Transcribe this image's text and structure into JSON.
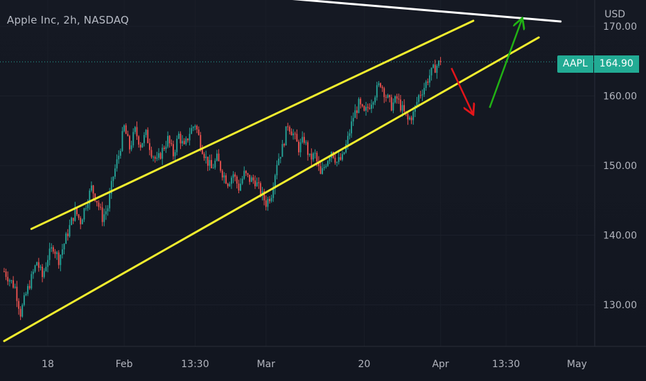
{
  "header": {
    "title": "Apple Inc, 2h, NASDAQ",
    "currency": "USD"
  },
  "price_tag": {
    "symbol": "AAPL",
    "value": "164.90"
  },
  "colors": {
    "background": "#131722",
    "grid": "#2a2e39",
    "up": "#26a69a",
    "down": "#ef5350",
    "channel": "#f2ee2e",
    "resistance": "#ffffff",
    "arrow_down": "#e3151a",
    "arrow_up": "#21b214",
    "price_label": "#22ab94",
    "text": "#b2b5be"
  },
  "chart_data": {
    "type": "candlestick",
    "title": "Apple Inc, 2h, NASDAQ",
    "y_axis": {
      "ticks": [
        "130.00",
        "140.00",
        "150.00",
        "160.00",
        "170.00"
      ],
      "tick_values": [
        130,
        140,
        150,
        160,
        170
      ],
      "range": [
        125.5,
        172
      ],
      "unit": "USD"
    },
    "x_axis": {
      "ticks": [
        "18",
        "Feb",
        "13:30",
        "Mar",
        "20",
        "Apr",
        "13:30",
        "May"
      ],
      "tick_index": [
        8,
        22,
        35,
        48,
        66,
        80,
        92,
        105
      ]
    },
    "last_price": 164.9,
    "grid": true,
    "series_path": [
      [
        0,
        134.8
      ],
      [
        2,
        132.5
      ],
      [
        3,
        128.8
      ],
      [
        4,
        131.5
      ],
      [
        5,
        133.8
      ],
      [
        6,
        136.2
      ],
      [
        7,
        134.0
      ],
      [
        8,
        136.8
      ],
      [
        9,
        138.4
      ],
      [
        10,
        136.5
      ],
      [
        11,
        138.8
      ],
      [
        12,
        141.2
      ],
      [
        13,
        143.5
      ],
      [
        14,
        142.0
      ],
      [
        15,
        144.5
      ],
      [
        16,
        146.8
      ],
      [
        17,
        145.0
      ],
      [
        18,
        142.5
      ],
      [
        19,
        144.0
      ],
      [
        20,
        148.5
      ],
      [
        21,
        151.5
      ],
      [
        22,
        155.5
      ],
      [
        23,
        152.5
      ],
      [
        24,
        155.0
      ],
      [
        25,
        153.0
      ],
      [
        26,
        154.5
      ],
      [
        27,
        152.0
      ],
      [
        28,
        150.5
      ],
      [
        29,
        152.2
      ],
      [
        30,
        153.8
      ],
      [
        31,
        151.6
      ],
      [
        32,
        154.4
      ],
      [
        33,
        152.5
      ],
      [
        34,
        154.8
      ],
      [
        35,
        156.0
      ],
      [
        36,
        153.2
      ],
      [
        37,
        151.0
      ],
      [
        38,
        149.5
      ],
      [
        39,
        151.0
      ],
      [
        40,
        149.0
      ],
      [
        41,
        147.6
      ],
      [
        42,
        148.8
      ],
      [
        43,
        146.8
      ],
      [
        44,
        148.8
      ],
      [
        45,
        148.0
      ],
      [
        46,
        147.8
      ],
      [
        47,
        146.2
      ],
      [
        48,
        144.6
      ],
      [
        49,
        146.0
      ],
      [
        50,
        150.5
      ],
      [
        51,
        152.5
      ],
      [
        52,
        156.0
      ],
      [
        53,
        154.5
      ],
      [
        54,
        152.5
      ],
      [
        55,
        153.8
      ],
      [
        56,
        151.0
      ],
      [
        57,
        151.5
      ],
      [
        58,
        148.5
      ],
      [
        59,
        150.5
      ],
      [
        60,
        152.2
      ],
      [
        61,
        150.5
      ],
      [
        62,
        151.0
      ],
      [
        63,
        153.8
      ],
      [
        64,
        157.0
      ],
      [
        65,
        158.8
      ],
      [
        66,
        157.4
      ],
      [
        67,
        158.8
      ],
      [
        68,
        160.4
      ],
      [
        69,
        161.9
      ],
      [
        70,
        160.0
      ],
      [
        71,
        158.6
      ],
      [
        72,
        159.6
      ],
      [
        73,
        158.0
      ],
      [
        74,
        156.5
      ],
      [
        75,
        157.4
      ],
      [
        76,
        160.0
      ],
      [
        77,
        161.3
      ],
      [
        78,
        163.0
      ],
      [
        79,
        164.1
      ],
      [
        80,
        164.9
      ]
    ],
    "drawings": [
      {
        "type": "line",
        "name": "upper-channel",
        "points": [
          [
            5,
            140.9
          ],
          [
            86,
            170.8
          ]
        ]
      },
      {
        "type": "line",
        "name": "lower-channel",
        "points": [
          [
            0,
            124.8
          ],
          [
            98,
            168.4
          ]
        ]
      },
      {
        "type": "line",
        "name": "resistance",
        "points": [
          [
            0,
            177.4
          ],
          [
            102,
            170.7
          ]
        ]
      },
      {
        "type": "arrow",
        "name": "projected-drop",
        "points": [
          [
            82,
            164.0
          ],
          [
            86,
            157.3
          ]
        ]
      },
      {
        "type": "arrow",
        "name": "projected-rise",
        "points": [
          [
            89,
            158.3
          ],
          [
            95,
            171.2
          ]
        ]
      }
    ]
  }
}
